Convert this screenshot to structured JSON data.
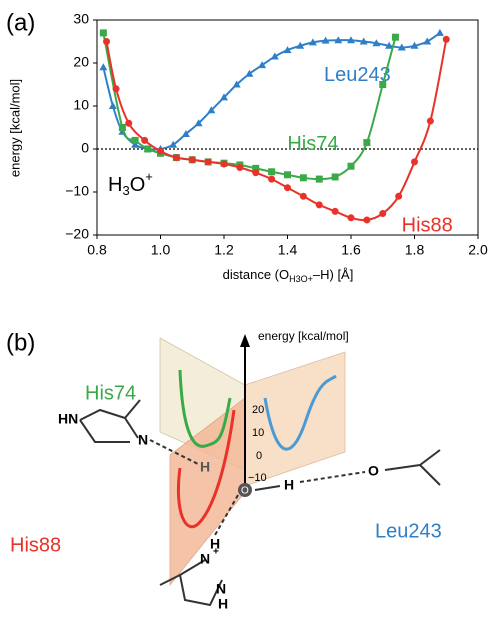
{
  "chart_data": {
    "type": "line",
    "panel_label": "(a)",
    "xlabel_parts": [
      "distance (O",
      "H3O+",
      "–H) [Å]"
    ],
    "ylabel": "energy [kcal/mol]",
    "annotation_parts": [
      "H",
      "3",
      "O",
      "+"
    ],
    "xlim": [
      0.8,
      2.0
    ],
    "xticks": [
      0.8,
      {
        "value": 1,
        "label": "1.0"
      },
      1.2,
      1.4,
      1.6,
      1.8,
      {
        "value": 2,
        "label": "2.0"
      }
    ],
    "ylim": [
      -20,
      30
    ],
    "yticks": [
      {
        "value": -20,
        "label": "−20"
      },
      {
        "value": -10,
        "label": "−10"
      },
      0,
      10,
      20,
      30
    ],
    "reference_line": 0,
    "series": [
      {
        "name": "Leu243",
        "color": "#2f7fc8",
        "marker": "triangle",
        "x": [
          0.82,
          0.85,
          0.88,
          0.92,
          0.96,
          1.0,
          1.04,
          1.08,
          1.12,
          1.16,
          1.2,
          1.24,
          1.28,
          1.32,
          1.36,
          1.4,
          1.44,
          1.48,
          1.52,
          1.56,
          1.6,
          1.64,
          1.68,
          1.72,
          1.76,
          1.8,
          1.84,
          1.88
        ],
        "values": [
          19,
          10,
          4,
          1,
          0,
          0,
          1,
          3.5,
          6,
          9,
          12,
          15,
          17.5,
          19.5,
          21.5,
          23,
          24,
          24.8,
          25.2,
          25.3,
          25.3,
          25,
          24.6,
          24,
          23.6,
          24,
          25,
          27
        ]
      },
      {
        "name": "His74",
        "color": "#3aaa48",
        "marker": "square",
        "x": [
          0.82,
          0.88,
          0.92,
          0.96,
          1.0,
          1.05,
          1.1,
          1.15,
          1.2,
          1.25,
          1.3,
          1.35,
          1.4,
          1.45,
          1.5,
          1.55,
          1.6,
          1.65,
          1.7,
          1.74
        ],
        "values": [
          27,
          5,
          2,
          0,
          -1,
          -2,
          -2.5,
          -3,
          -3.3,
          -3.7,
          -4.5,
          -5.3,
          -6,
          -6.7,
          -7,
          -6.5,
          -4,
          1.5,
          15,
          26
        ]
      },
      {
        "name": "His88",
        "color": "#e8322a",
        "marker": "circle",
        "x": [
          0.83,
          0.86,
          0.9,
          0.95,
          1.0,
          1.05,
          1.1,
          1.15,
          1.2,
          1.25,
          1.3,
          1.35,
          1.4,
          1.45,
          1.5,
          1.55,
          1.6,
          1.65,
          1.7,
          1.75,
          1.8,
          1.85,
          1.9
        ],
        "values": [
          25,
          14,
          6,
          2,
          -0.5,
          -2,
          -2.5,
          -3,
          -3.5,
          -4.3,
          -5.5,
          -7,
          -9,
          -11,
          -13,
          -14.5,
          -16,
          -16.5,
          -15,
          -11,
          -3,
          6.5,
          25.5
        ]
      }
    ]
  },
  "diagram": {
    "panel_label": "(b)",
    "axis_label": "energy [kcal/mol]",
    "axis_ticks": [
      "20",
      "10",
      "0",
      "−10"
    ],
    "curve_labels": [
      "His74",
      "His88",
      "Leu243"
    ],
    "atoms": [
      "HN",
      "N",
      "H",
      "O",
      "H",
      "O",
      "H",
      "N",
      "+",
      "N",
      "H"
    ]
  }
}
